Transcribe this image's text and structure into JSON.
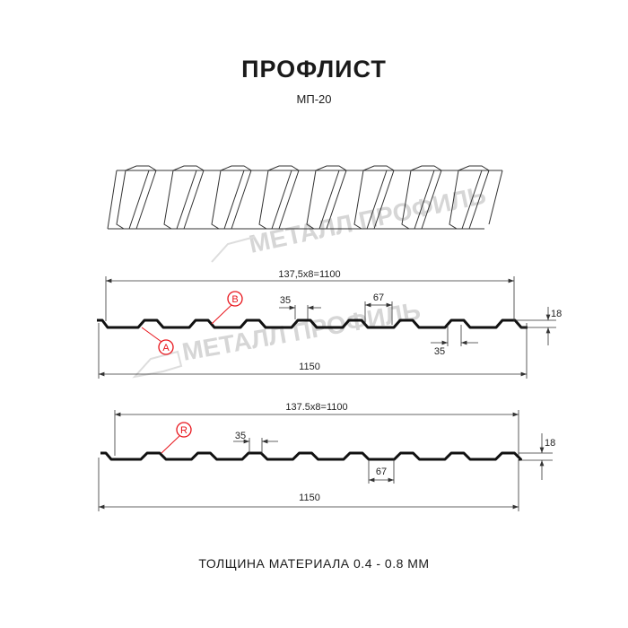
{
  "title": "ПРОФЛИСТ",
  "subtitle": "МП-20",
  "footer": "ТОЛЩИНА МАТЕРИАЛА 0.4 - 0.8 ММ",
  "watermark": "МЕТАЛЛ ПРОФИЛЬ",
  "accent_color": "#e8141b",
  "profile1": {
    "span_label": "137,5x8=1100",
    "width_label": "1150",
    "top_label": "35",
    "bottom_label": "35",
    "pitch_label": "67",
    "height_label": "18",
    "marker_a": "A",
    "marker_b": "B"
  },
  "profile2": {
    "span_label": "137.5x8=1100",
    "width_label": "1150",
    "top_label": "35",
    "pitch_label": "67",
    "height_label": "18",
    "marker_r": "R"
  }
}
